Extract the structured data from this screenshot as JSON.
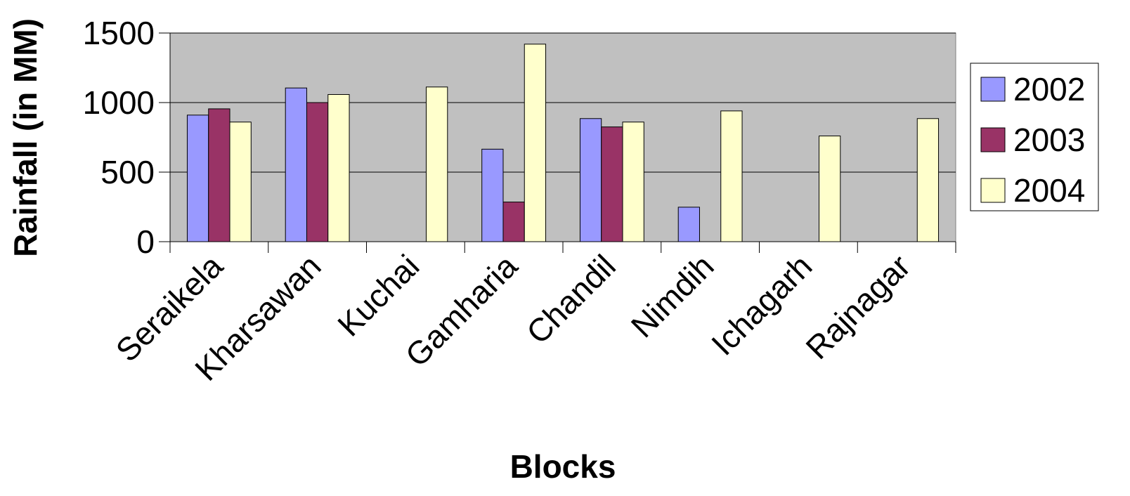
{
  "chart_data": {
    "type": "bar",
    "categories": [
      "Seraikela",
      "Kharsawan",
      "Kuchai",
      "Gamharia",
      "Chandil",
      "Nimdih",
      "Ichagarh",
      "Rajnagar"
    ],
    "series": [
      {
        "name": "2002",
        "color": "#9999ff",
        "values": [
          910,
          1105,
          0,
          665,
          885,
          248,
          0,
          0
        ]
      },
      {
        "name": "2003",
        "color": "#993366",
        "values": [
          955,
          1000,
          0,
          285,
          825,
          0,
          0,
          0
        ]
      },
      {
        "name": "2004",
        "color": "#ffffcc",
        "values": [
          860,
          1058,
          1112,
          1420,
          860,
          940,
          760,
          885
        ]
      }
    ],
    "xlabel": "Blocks",
    "ylabel": "Rainfall (in MM)",
    "ylim": [
      0,
      1500
    ],
    "yticks": [
      0,
      500,
      1000,
      1500
    ],
    "grid": true,
    "plot_background": "#c0c0c0",
    "legend_position": "right"
  }
}
